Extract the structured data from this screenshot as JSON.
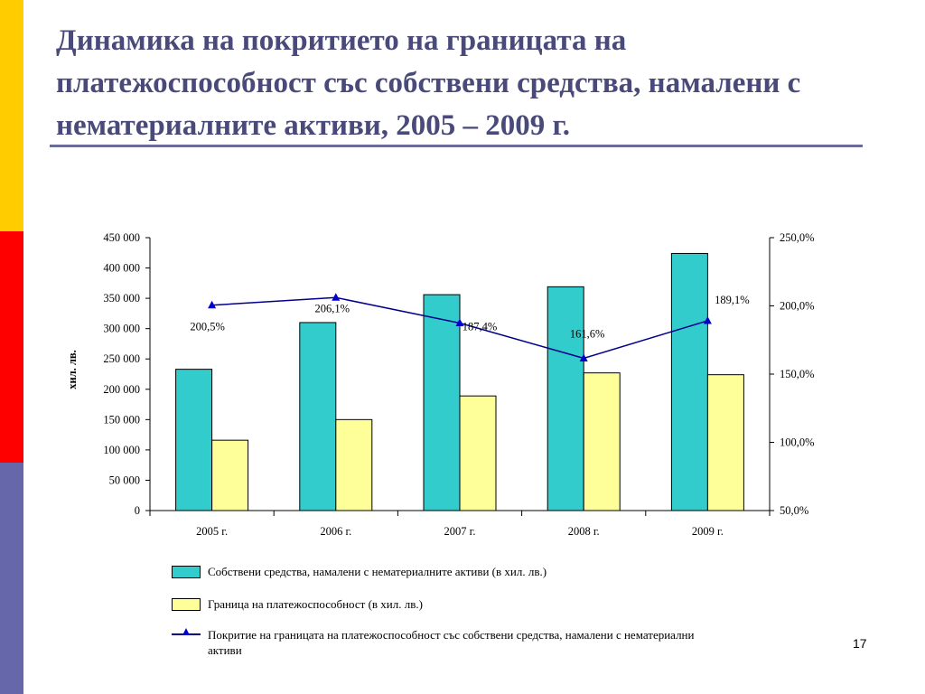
{
  "slide": {
    "title": "Динамика на покритието на границата на платежоспособност със собствени средства, намалени с нематериалните активи, 2005 – 2009 г.",
    "page_number": "17"
  },
  "colors": {
    "accent_yellow": "#ffcc00",
    "accent_red": "#ff0000",
    "accent_blue": "#6666aa",
    "title_text": "#4a4a7a",
    "bar_own_funds": "#33cccc",
    "bar_margin": "#ffff99",
    "line_coverage": "#00008b"
  },
  "chart_data": {
    "type": "bar",
    "categories": [
      "2005 г.",
      "2006 г.",
      "2007 г.",
      "2008 г.",
      "2009 г."
    ],
    "series": [
      {
        "name": "Собствени средства, намалени с нематериалните активи (в хил. лв.)",
        "kind": "bar",
        "axis": "left",
        "color": "#33cccc",
        "values": [
          233000,
          310000,
          356000,
          369000,
          424000
        ]
      },
      {
        "name": "Граница на платежоспособност  (в хил. лв.)",
        "kind": "bar",
        "axis": "left",
        "color": "#ffff99",
        "values": [
          116000,
          150000,
          189000,
          227000,
          224000
        ]
      },
      {
        "name": "Покритие на границата на платежоспособност със собствени средства, намалени с нематериални активи",
        "kind": "line",
        "axis": "right",
        "color": "#00008b",
        "marker": "triangle",
        "values": [
          200.5,
          206.1,
          187.4,
          161.6,
          189.1
        ],
        "labels": [
          "200,5%",
          "206,1%",
          "187,4%",
          "161,6%",
          "189,1%"
        ]
      }
    ],
    "ylabel": "хил. лв.",
    "ylim": [
      0,
      450000
    ],
    "y_ticks": [
      "0",
      "50 000",
      "100 000",
      "150 000",
      "200 000",
      "250 000",
      "300 000",
      "350 000",
      "400 000",
      "450 000"
    ],
    "y2lim": [
      50,
      250
    ],
    "y2_ticks": [
      "50,0%",
      "100,0%",
      "150,0%",
      "200,0%",
      "250,0%"
    ],
    "grid": false,
    "legend_position": "bottom"
  }
}
